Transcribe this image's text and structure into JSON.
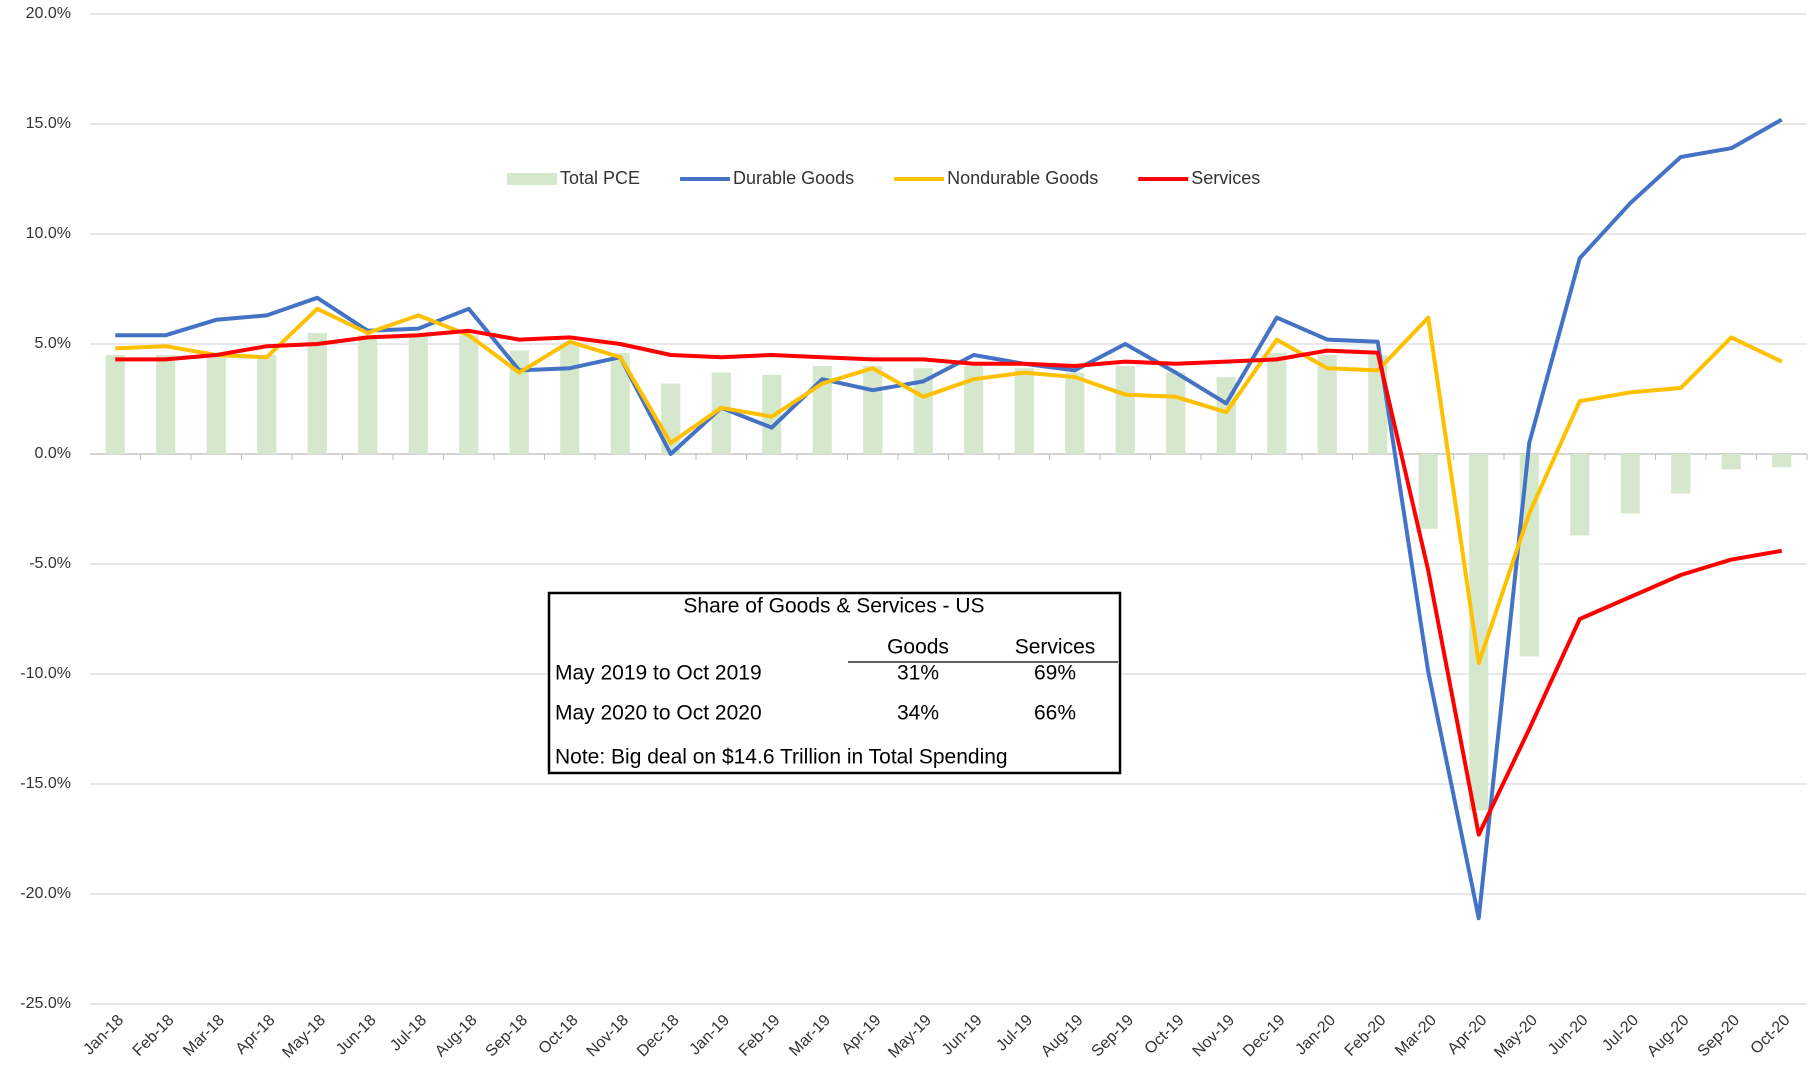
{
  "chart_data": {
    "type": "combo",
    "categories": [
      "Jan-18",
      "Feb-18",
      "Mar-18",
      "Apr-18",
      "May-18",
      "Jun-18",
      "Jul-18",
      "Aug-18",
      "Sep-18",
      "Oct-18",
      "Nov-18",
      "Dec-18",
      "Jan-19",
      "Feb-19",
      "Mar-19",
      "Apr-19",
      "May-19",
      "Jun-19",
      "Jul-19",
      "Aug-19",
      "Sep-19",
      "Oct-19",
      "Nov-19",
      "Dec-19",
      "Jan-20",
      "Feb-20",
      "Mar-20",
      "Apr-20",
      "May-20",
      "Jun-20",
      "Jul-20",
      "Aug-20",
      "Sep-20",
      "Oct-20"
    ],
    "series": [
      {
        "name": "Total PCE",
        "kind": "bar",
        "color": "#d5e8cd",
        "values": [
          4.5,
          4.5,
          4.5,
          4.5,
          5.5,
          5.4,
          5.4,
          5.4,
          4.7,
          5.0,
          4.6,
          3.2,
          3.7,
          3.6,
          4.0,
          4.0,
          3.9,
          4.0,
          3.9,
          3.7,
          4.0,
          3.7,
          3.5,
          4.6,
          4.5,
          4.5,
          -3.4,
          -16.2,
          -9.2,
          -3.7,
          -2.7,
          -1.8,
          -0.7,
          -0.6
        ]
      },
      {
        "name": "Durable Goods",
        "kind": "line",
        "color": "#4472c4",
        "values": [
          5.4,
          5.4,
          6.1,
          6.3,
          7.1,
          5.6,
          5.7,
          6.6,
          3.8,
          3.9,
          4.4,
          0.0,
          2.1,
          1.2,
          3.4,
          2.9,
          3.3,
          4.5,
          4.1,
          3.8,
          5.0,
          3.7,
          2.3,
          6.2,
          5.2,
          5.1,
          -9.9,
          -21.1,
          0.5,
          8.9,
          11.4,
          13.5,
          13.9,
          15.2
        ]
      },
      {
        "name": "Nondurable Goods",
        "kind": "line",
        "color": "#ffc000",
        "values": [
          4.8,
          4.9,
          4.5,
          4.4,
          6.6,
          5.5,
          6.3,
          5.4,
          3.7,
          5.1,
          4.4,
          0.5,
          2.1,
          1.7,
          3.2,
          3.9,
          2.6,
          3.4,
          3.7,
          3.5,
          2.7,
          2.6,
          1.9,
          5.2,
          3.9,
          3.8,
          6.2,
          -9.5,
          -2.7,
          2.4,
          2.8,
          3.0,
          5.3,
          4.2
        ]
      },
      {
        "name": "Services",
        "kind": "line",
        "color": "#ff0000",
        "values": [
          4.3,
          4.3,
          4.5,
          4.9,
          5.0,
          5.3,
          5.4,
          5.6,
          5.2,
          5.3,
          5.0,
          4.5,
          4.4,
          4.5,
          4.4,
          4.3,
          4.3,
          4.1,
          4.1,
          4.0,
          4.2,
          4.1,
          4.2,
          4.3,
          4.7,
          4.6,
          -5.3,
          -17.3,
          -12.5,
          -7.5,
          -6.5,
          -5.5,
          -4.8,
          -4.4
        ]
      }
    ],
    "ylim": [
      -25,
      20
    ],
    "yticks": [
      {
        "value": -25,
        "label": "-25.0%"
      },
      {
        "value": -20,
        "label": "-20.0%"
      },
      {
        "value": -15,
        "label": "-15.0%"
      },
      {
        "value": -10,
        "label": "-10.0%"
      },
      {
        "value": -5,
        "label": "-5.0%"
      },
      {
        "value": 0,
        "label": "0.0%"
      },
      {
        "value": 5,
        "label": "5.0%"
      },
      {
        "value": 10,
        "label": "10.0%"
      },
      {
        "value": 15,
        "label": "15.0%"
      },
      {
        "value": 20,
        "label": "20.0%"
      }
    ],
    "grid": true,
    "legend": "top",
    "table": {
      "title": "Share of Goods & Services - US",
      "columns": [
        "Goods",
        "Services"
      ],
      "rows": [
        {
          "label": "May 2019 to Oct 2019",
          "cells": [
            "31%",
            "69%"
          ]
        },
        {
          "label": "May 2020 to Oct 2020",
          "cells": [
            "34%",
            "66%"
          ]
        }
      ],
      "note": "Note: Big deal on $14.6 Trillion in Total Spending"
    }
  }
}
